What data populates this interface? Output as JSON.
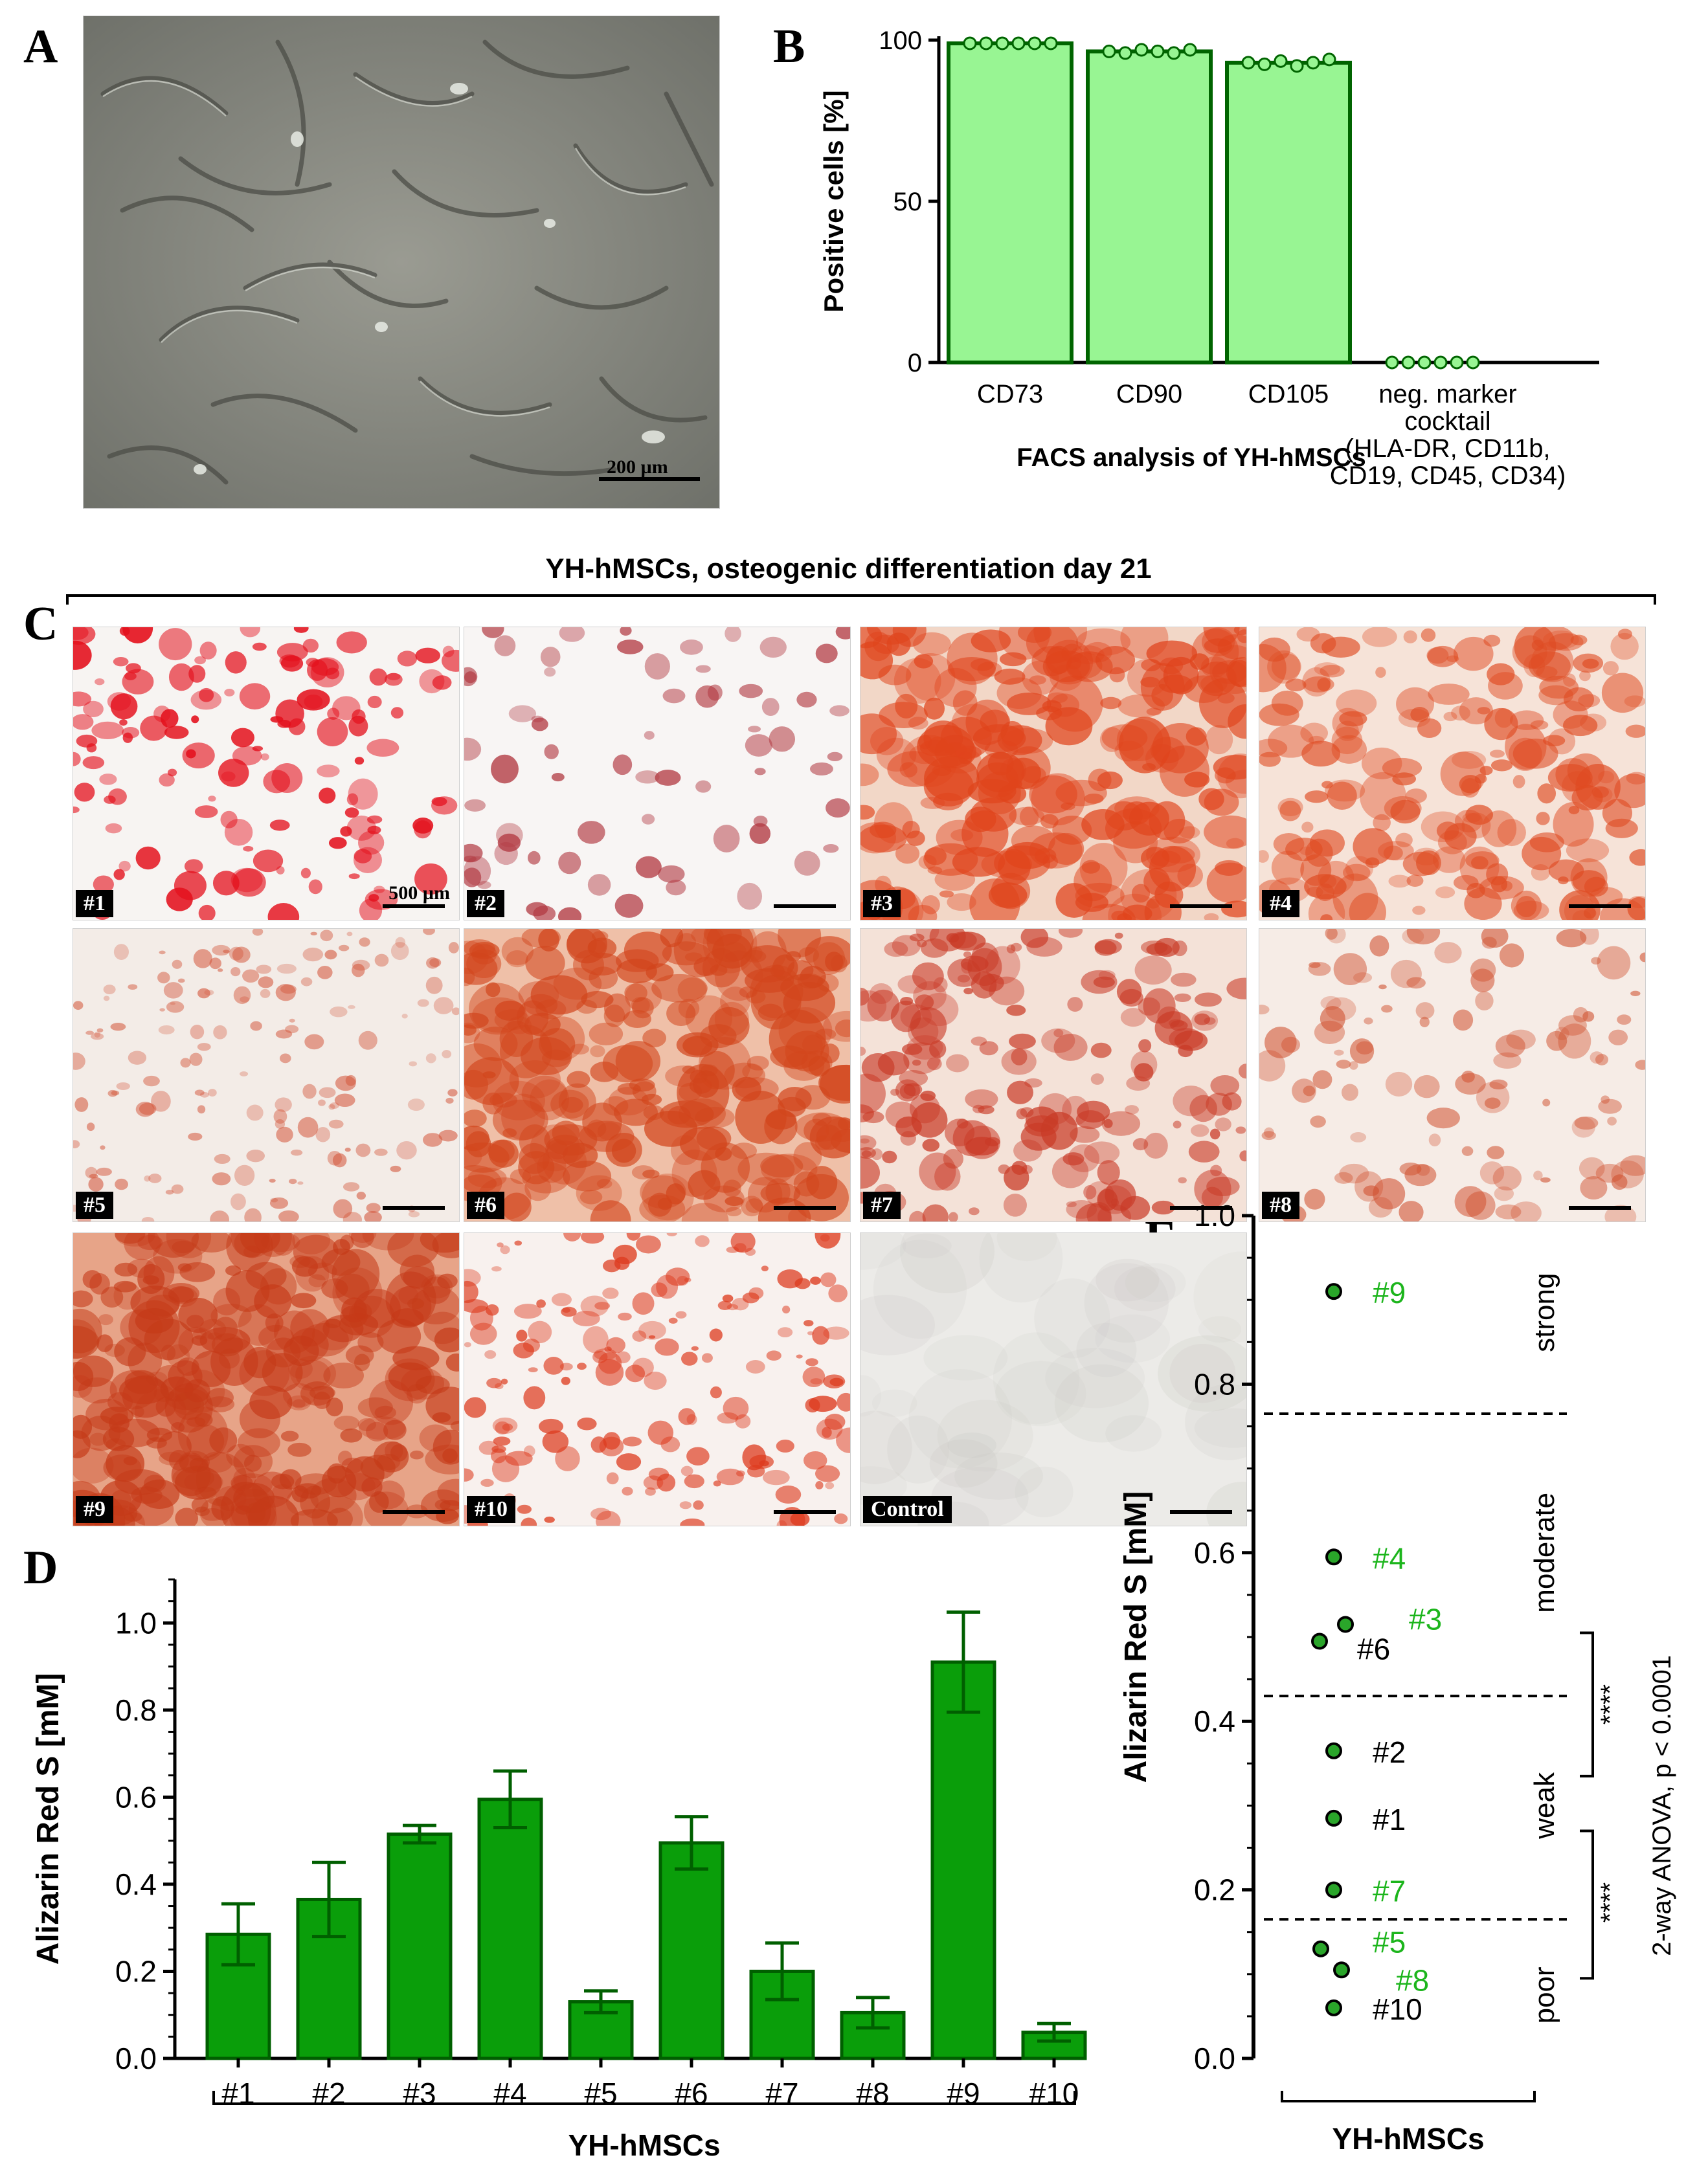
{
  "panels": {
    "a": {
      "letter": "A",
      "scale": "200 µm"
    },
    "b": {
      "letter": "B"
    },
    "c": {
      "letter": "C",
      "header": "YH-hMSCs, osteogenic differentiation day 21",
      "scale": "500 µm",
      "tiles": [
        "#1",
        "#2",
        "#3",
        "#4",
        "#5",
        "#6",
        "#7",
        "#8",
        "#9",
        "#10",
        "Control"
      ]
    },
    "d": {
      "letter": "D"
    },
    "e": {
      "letter": "E"
    }
  },
  "colors": {
    "bar_light": "#98f593",
    "bar_light_stroke": "#006400",
    "bar_dark": "#0a9e0a",
    "bar_dark_stroke": "#005f00",
    "label_green": "#1cb51c",
    "dot": "#2aa52a"
  },
  "chart_data": [
    {
      "id": "B",
      "type": "bar",
      "categories": [
        "CD73",
        "CD90",
        "CD105",
        "neg. marker\ncocktail\n(HLA-DR, CD11b,\nCD19, CD45, CD34)"
      ],
      "values": [
        99,
        96.5,
        93,
        0
      ],
      "points": [
        [
          99,
          99,
          99,
          99,
          99,
          99
        ],
        [
          96.5,
          96,
          97,
          96.5,
          96,
          97
        ],
        [
          93,
          92.5,
          93.5,
          92,
          93,
          94
        ],
        [
          0,
          0,
          0,
          0,
          0,
          0
        ]
      ],
      "ylabel": "Positive cells [%]",
      "xlabel": "FACS analysis of YH-hMSCs",
      "ylim": [
        0,
        100
      ],
      "yticks": [
        "0",
        "50",
        "100"
      ]
    },
    {
      "id": "D",
      "type": "bar",
      "categories": [
        "#1",
        "#2",
        "#3",
        "#4",
        "#5",
        "#6",
        "#7",
        "#8",
        "#9",
        "#10"
      ],
      "values": [
        0.285,
        0.365,
        0.515,
        0.595,
        0.13,
        0.495,
        0.2,
        0.105,
        0.91,
        0.06
      ],
      "errors": [
        0.07,
        0.085,
        0.02,
        0.065,
        0.025,
        0.06,
        0.065,
        0.035,
        0.115,
        0.02
      ],
      "ylabel": "Alizarin Red S [mM]",
      "xlabel": "YH-hMSCs",
      "ylim": [
        0,
        1.1
      ],
      "yticks": [
        "0.0",
        "0.2",
        "0.4",
        "0.6",
        "0.8",
        "1.0"
      ]
    },
    {
      "id": "E",
      "type": "scatter",
      "points": [
        {
          "label": "#9",
          "y": 0.91,
          "green": true
        },
        {
          "label": "#4",
          "y": 0.595,
          "green": true
        },
        {
          "label": "#3",
          "y": 0.515,
          "green": true
        },
        {
          "label": "#6",
          "y": 0.495,
          "green": false
        },
        {
          "label": "#2",
          "y": 0.365,
          "green": false
        },
        {
          "label": "#1",
          "y": 0.285,
          "green": false
        },
        {
          "label": "#7",
          "y": 0.2,
          "green": true
        },
        {
          "label": "#5",
          "y": 0.13,
          "green": true
        },
        {
          "label": "#8",
          "y": 0.105,
          "green": true
        },
        {
          "label": "#10",
          "y": 0.06,
          "green": false
        }
      ],
      "thresholds": [
        0.765,
        0.43,
        0.165
      ],
      "categories_text": [
        "strong",
        "moderate",
        "weak",
        "poor"
      ],
      "stat_text": "2-way ANOVA, p < 0.0001",
      "stars": "****",
      "ylabel": "Alizarin Red S [mM]",
      "xlabel": "YH-hMSCs",
      "ylim": [
        0,
        1.0
      ],
      "yticks": [
        "0.0",
        "0.2",
        "0.4",
        "0.6",
        "0.8",
        "1.0"
      ]
    }
  ]
}
